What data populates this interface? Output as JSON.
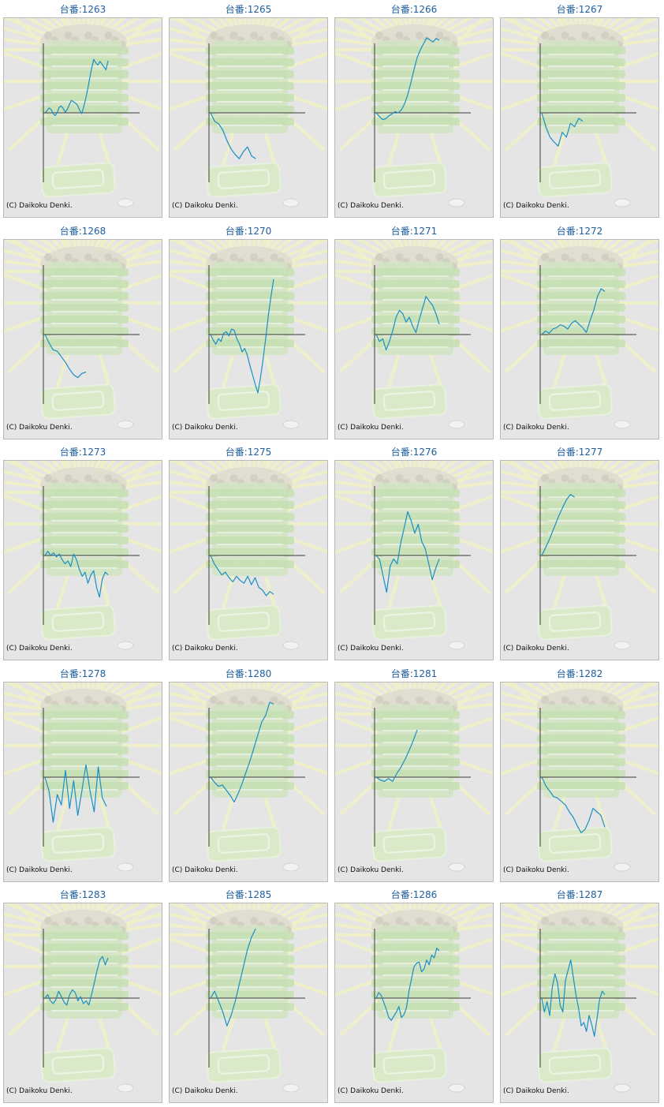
{
  "page": {
    "copyright": "(C) Daikoku Denki.",
    "line_color": "#1a8fc4",
    "axis_color": "#3a3a3a",
    "panel_background": "#e5e5e5",
    "title_color": "#1f5fa0"
  },
  "chart_data": [
    {
      "type": "line",
      "title": "台番:1263",
      "y": [
        0,
        3,
        7,
        5,
        -1,
        -4,
        0,
        8,
        10,
        6,
        1,
        5,
        12,
        18,
        16,
        14,
        11,
        4,
        -1,
        8,
        20,
        34,
        50,
        65,
        77,
        72,
        69,
        74,
        70,
        66,
        62,
        75
      ]
    },
    {
      "type": "line",
      "title": "台番:1265",
      "y": [
        0,
        -12,
        -16,
        -25,
        -40,
        -52,
        -60,
        -66,
        -56,
        -49,
        -62,
        -66
      ]
    },
    {
      "type": "line",
      "title": "台番:1266",
      "y": [
        0,
        -6,
        -11,
        -10,
        -5,
        -2,
        2,
        0,
        5,
        15,
        30,
        50,
        72,
        92,
        105,
        115,
        125,
        122,
        118,
        124,
        121
      ]
    },
    {
      "type": "line",
      "title": "台番:1267",
      "y": [
        0,
        -20,
        -35,
        -42,
        -48,
        -28,
        -35,
        -15,
        -20,
        -8,
        -12
      ]
    },
    {
      "type": "line",
      "title": "台番:1268",
      "y": [
        0,
        -12,
        -22,
        -24,
        -32,
        -40,
        -50,
        -58,
        -62,
        -56,
        -54
      ]
    },
    {
      "type": "line",
      "title": "台番:1270",
      "y": [
        0,
        -8,
        -14,
        -6,
        -10,
        2,
        4,
        -2,
        8,
        6,
        -6,
        -14,
        -25,
        -20,
        -30,
        -45,
        -58,
        -72,
        -84,
        -62,
        -35,
        -5,
        28,
        55,
        80
      ]
    },
    {
      "type": "line",
      "title": "台番:1271",
      "y": [
        0,
        -10,
        -6,
        -22,
        -10,
        6,
        25,
        35,
        30,
        18,
        25,
        12,
        3,
        22,
        38,
        55,
        48,
        42,
        30,
        15
      ]
    },
    {
      "type": "line",
      "title": "台番:1272",
      "y": [
        0,
        5,
        2,
        8,
        10,
        14,
        12,
        8,
        16,
        20,
        15,
        10,
        3,
        20,
        35,
        55,
        66,
        62
      ]
    },
    {
      "type": "line",
      "title": "台番:1273",
      "y": [
        0,
        6,
        0,
        4,
        -2,
        2,
        -6,
        -12,
        -8,
        -16,
        2,
        -6,
        -20,
        -30,
        -24,
        -40,
        -28,
        -22,
        -46,
        -60,
        -34,
        -24,
        -28
      ]
    },
    {
      "type": "line",
      "title": "台番:1275",
      "y": [
        0,
        -12,
        -20,
        -28,
        -24,
        -32,
        -38,
        -30,
        -36,
        -40,
        -30,
        -42,
        -32,
        -46,
        -50,
        -58,
        -52,
        -56
      ]
    },
    {
      "type": "line",
      "title": "台番:1276",
      "y": [
        0,
        -6,
        -30,
        -53,
        -15,
        -5,
        -12,
        18,
        40,
        63,
        50,
        32,
        45,
        20,
        10,
        -12,
        -35,
        -18,
        -5
      ]
    },
    {
      "type": "line",
      "title": "台番:1277",
      "y": [
        0,
        12,
        25,
        40,
        55,
        68,
        80,
        88,
        84
      ]
    },
    {
      "type": "line",
      "title": "台番:1278",
      "y": [
        0,
        -20,
        -65,
        -25,
        -40,
        10,
        -45,
        -5,
        -55,
        -20,
        18,
        -20,
        -50,
        15,
        -30,
        -42
      ]
    },
    {
      "type": "line",
      "title": "台番:1280",
      "y": [
        0,
        -8,
        -14,
        -12,
        -20,
        -28,
        -38,
        -25,
        -10,
        8,
        25,
        45,
        65,
        85,
        95,
        115,
        112
      ]
    },
    {
      "type": "line",
      "title": "台番:1281",
      "y": [
        0,
        -4,
        -6,
        -2,
        -6,
        5,
        14,
        25,
        38,
        52,
        68
      ]
    },
    {
      "type": "line",
      "title": "台番:1282",
      "y": [
        0,
        -12,
        -20,
        -28,
        -30,
        -35,
        -40,
        -50,
        -58,
        -70,
        -80,
        -75,
        -62,
        -45,
        -50,
        -55,
        -72
      ]
    },
    {
      "type": "line",
      "title": "台番:1283",
      "y": [
        0,
        5,
        -4,
        -8,
        -2,
        10,
        2,
        -6,
        -10,
        5,
        12,
        8,
        -4,
        2,
        -8,
        -4,
        -10,
        5,
        22,
        40,
        55,
        60,
        48,
        58
      ]
    },
    {
      "type": "line",
      "title": "台番:1285",
      "y": [
        0,
        10,
        -5,
        -20,
        -40,
        -25,
        -5,
        20,
        45,
        70,
        88,
        100
      ]
    },
    {
      "type": "line",
      "title": "台番:1286",
      "y": [
        0,
        8,
        4,
        -6,
        -16,
        -28,
        -32,
        -26,
        -20,
        -12,
        -28,
        -24,
        -14,
        10,
        28,
        45,
        50,
        52,
        38,
        42,
        55,
        48,
        62,
        58,
        72,
        68
      ]
    },
    {
      "type": "line",
      "title": "台番:1287",
      "y": [
        0,
        -20,
        -5,
        -25,
        15,
        35,
        22,
        -10,
        -20,
        25,
        40,
        55,
        30,
        5,
        -15,
        -40,
        -35,
        -48,
        -25,
        -38,
        -55,
        -30,
        -2,
        10,
        5
      ]
    }
  ]
}
